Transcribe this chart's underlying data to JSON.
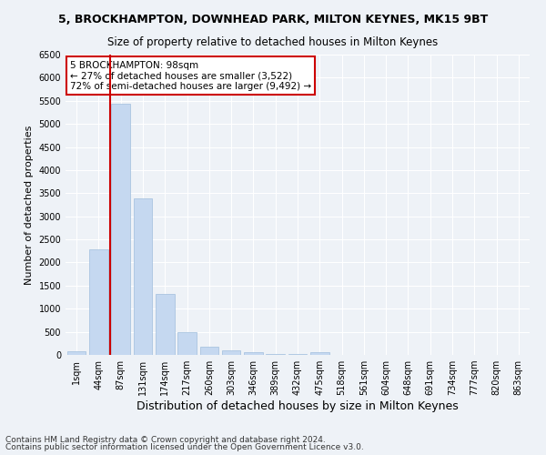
{
  "title": "5, BROCKHAMPTON, DOWNHEAD PARK, MILTON KEYNES, MK15 9BT",
  "subtitle": "Size of property relative to detached houses in Milton Keynes",
  "xlabel": "Distribution of detached houses by size in Milton Keynes",
  "ylabel": "Number of detached properties",
  "categories": [
    "1sqm",
    "44sqm",
    "87sqm",
    "131sqm",
    "174sqm",
    "217sqm",
    "260sqm",
    "303sqm",
    "346sqm",
    "389sqm",
    "432sqm",
    "475sqm",
    "518sqm",
    "561sqm",
    "604sqm",
    "648sqm",
    "691sqm",
    "734sqm",
    "777sqm",
    "820sqm",
    "863sqm"
  ],
  "bar_heights": [
    75,
    2280,
    5440,
    3380,
    1310,
    490,
    185,
    105,
    65,
    20,
    10,
    65,
    0,
    0,
    0,
    0,
    0,
    0,
    0,
    0,
    0
  ],
  "bar_color": "#c5d8f0",
  "bar_edge_color": "#a0bedd",
  "vline_color": "#cc0000",
  "vline_x_index": 1.5,
  "annotation_text": "5 BROCKHAMPTON: 98sqm\n← 27% of detached houses are smaller (3,522)\n72% of semi-detached houses are larger (9,492) →",
  "annotation_box_color": "#ffffff",
  "annotation_box_edge": "#cc0000",
  "ylim": [
    0,
    6500
  ],
  "yticks": [
    0,
    500,
    1000,
    1500,
    2000,
    2500,
    3000,
    3500,
    4000,
    4500,
    5000,
    5500,
    6000,
    6500
  ],
  "footer_line1": "Contains HM Land Registry data © Crown copyright and database right 2024.",
  "footer_line2": "Contains public sector information licensed under the Open Government Licence v3.0.",
  "bg_color": "#eef2f7",
  "title_fontsize": 9,
  "subtitle_fontsize": 8.5,
  "xlabel_fontsize": 9,
  "ylabel_fontsize": 8,
  "tick_fontsize": 7,
  "annotation_fontsize": 7.5,
  "footer_fontsize": 6.5
}
